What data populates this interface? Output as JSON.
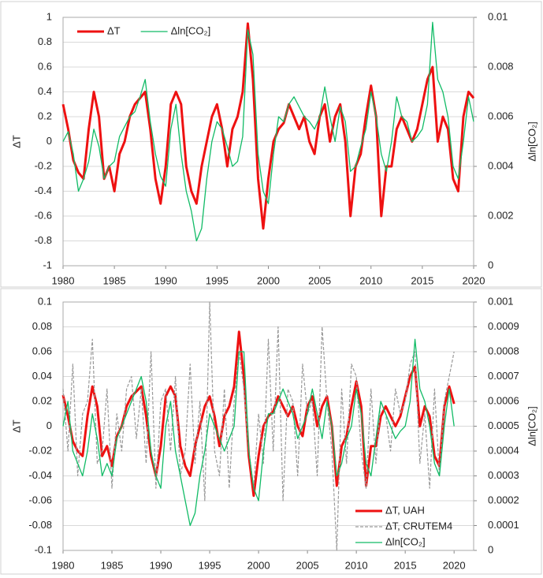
{
  "chart_data": [
    {
      "type": "line",
      "ylabel": "ΔT",
      "y2label": "Δln[CO₂]",
      "legend": "upper left",
      "grid": true,
      "x": [
        1980,
        1980.5,
        1981,
        1981.5,
        1982,
        1982.5,
        1983,
        1983.5,
        1984,
        1984.5,
        1985,
        1985.5,
        1986,
        1986.5,
        1987,
        1987.5,
        1988,
        1988.5,
        1989,
        1989.5,
        1990,
        1990.5,
        1991,
        1991.5,
        1992,
        1992.5,
        1993,
        1993.5,
        1994,
        1994.5,
        1995,
        1995.5,
        1996,
        1996.5,
        1997,
        1997.5,
        1998,
        1998.5,
        1999,
        1999.5,
        2000,
        2000.5,
        2001,
        2001.5,
        2002,
        2002.5,
        2003,
        2003.5,
        2004,
        2004.5,
        2005,
        2005.5,
        2006,
        2006.5,
        2007,
        2007.5,
        2008,
        2008.5,
        2009,
        2009.5,
        2010,
        2010.5,
        2011,
        2011.5,
        2012,
        2012.5,
        2013,
        2013.5,
        2014,
        2014.5,
        2015,
        2015.5,
        2016,
        2016.5,
        2017,
        2017.5,
        2018,
        2018.5,
        2019,
        2019.5,
        2020
      ],
      "xlim": [
        1980,
        2020
      ],
      "xticks": [
        1980,
        1985,
        1990,
        1995,
        2000,
        2005,
        2010,
        2015,
        2020
      ],
      "ylim": [
        -1,
        1
      ],
      "yticks": [
        -1,
        -0.8,
        -0.6,
        -0.4,
        -0.2,
        0,
        0.2,
        0.4,
        0.6,
        0.8,
        1
      ],
      "y2lim": [
        0,
        0.01
      ],
      "y2ticks": [
        0,
        0.002,
        0.004,
        0.006,
        0.008,
        0.01
      ],
      "series": [
        {
          "name": "ΔT",
          "color": "#ee1111",
          "style": "thick",
          "values": [
            0.3,
            0.1,
            -0.15,
            -0.25,
            -0.3,
            0.1,
            0.4,
            0.2,
            -0.3,
            -0.2,
            -0.4,
            -0.1,
            0,
            0.2,
            0.3,
            0.35,
            0.4,
            0.1,
            -0.3,
            -0.5,
            -0.2,
            0.3,
            0.4,
            0.3,
            -0.2,
            -0.4,
            -0.5,
            -0.2,
            0,
            0.2,
            0.3,
            0.1,
            -0.2,
            0.1,
            0.2,
            0.4,
            0.95,
            0.5,
            -0.3,
            -0.7,
            -0.3,
            0,
            0.1,
            0.15,
            0.3,
            0.2,
            0.1,
            0.2,
            0,
            -0.1,
            0.2,
            0.3,
            0,
            0.2,
            0.3,
            0,
            -0.6,
            -0.2,
            -0.1,
            0.2,
            0.45,
            0.2,
            -0.6,
            -0.2,
            -0.2,
            0.1,
            0.2,
            0.1,
            0,
            0.1,
            0.3,
            0.5,
            0.6,
            0,
            0.2,
            0.1,
            -0.3,
            -0.4,
            0.2,
            0.4,
            0.35
          ]
        },
        {
          "name": "Δln[CO₂]",
          "color": "#11bb66",
          "style": "thin",
          "axis": "y2",
          "values": [
            0.005,
            0.0054,
            0.0045,
            0.003,
            0.0035,
            0.0042,
            0.0055,
            0.0048,
            0.0035,
            0.004,
            0.0042,
            0.0052,
            0.0056,
            0.006,
            0.0062,
            0.0068,
            0.0075,
            0.0058,
            0.0045,
            0.0036,
            0.0032,
            0.0055,
            0.0065,
            0.0045,
            0.003,
            0.0022,
            0.001,
            0.0015,
            0.0035,
            0.005,
            0.0058,
            0.0055,
            0.0048,
            0.004,
            0.0042,
            0.0052,
            0.0095,
            0.0085,
            0.0045,
            0.003,
            0.0025,
            0.0045,
            0.006,
            0.0058,
            0.0065,
            0.0068,
            0.0064,
            0.006,
            0.0058,
            0.0055,
            0.006,
            0.0072,
            0.006,
            0.005,
            0.0064,
            0.0058,
            0.0038,
            0.004,
            0.0048,
            0.0055,
            0.007,
            0.006,
            0.0045,
            0.0038,
            0.005,
            0.0068,
            0.006,
            0.0058,
            0.005,
            0.0052,
            0.0055,
            0.0065,
            0.0098,
            0.0075,
            0.007,
            0.006,
            0.004,
            0.0035,
            0.005,
            0.0068,
            0.0058
          ]
        }
      ]
    },
    {
      "type": "line",
      "ylabel": "ΔT",
      "y2label": "Δln[CO₂]",
      "legend": "lower right",
      "grid": true,
      "x": [
        1980,
        1980.5,
        1981,
        1981.5,
        1982,
        1982.5,
        1983,
        1983.5,
        1984,
        1984.5,
        1985,
        1985.5,
        1986,
        1986.5,
        1987,
        1987.5,
        1988,
        1988.5,
        1989,
        1989.5,
        1990,
        1990.5,
        1991,
        1991.5,
        1992,
        1992.5,
        1993,
        1993.5,
        1994,
        1994.5,
        1995,
        1995.5,
        1996,
        1996.5,
        1997,
        1997.5,
        1998,
        1998.5,
        1999,
        1999.5,
        2000,
        2000.5,
        2001,
        2001.5,
        2002,
        2002.5,
        2003,
        2003.5,
        2004,
        2004.5,
        2005,
        2005.5,
        2006,
        2006.5,
        2007,
        2007.5,
        2008,
        2008.5,
        2009,
        2009.5,
        2010,
        2010.5,
        2011,
        2011.5,
        2012,
        2012.5,
        2013,
        2013.5,
        2014,
        2014.5,
        2015,
        2015.5,
        2016,
        2016.5,
        2017,
        2017.5,
        2018,
        2018.5,
        2019,
        2019.5,
        2020
      ],
      "xlim": [
        1980,
        2022
      ],
      "xticks": [
        1980,
        1985,
        1990,
        1995,
        2000,
        2005,
        2010,
        2015,
        2020
      ],
      "ylim": [
        -0.1,
        0.1
      ],
      "yticks": [
        -0.1,
        -0.08,
        -0.06,
        -0.04,
        -0.02,
        0,
        0.02,
        0.04,
        0.06,
        0.08,
        0.1
      ],
      "y2lim": [
        0,
        0.001
      ],
      "y2ticks": [
        0,
        0.0001,
        0.0002,
        0.0003,
        0.0004,
        0.0005,
        0.0006,
        0.0007,
        0.0008,
        0.0009,
        0.001
      ],
      "series": [
        {
          "name": "ΔT, UAH",
          "color": "#ee1111",
          "style": "thick",
          "values": [
            0.025,
            0.008,
            -0.012,
            -0.02,
            -0.024,
            0.008,
            0.032,
            0.016,
            -0.024,
            -0.016,
            -0.032,
            -0.008,
            0,
            0.016,
            0.024,
            0.028,
            0.032,
            0.008,
            -0.024,
            -0.04,
            -0.016,
            0.024,
            0.032,
            0.024,
            -0.016,
            -0.032,
            -0.04,
            -0.016,
            0,
            0.016,
            0.024,
            0.008,
            -0.016,
            0.008,
            0.016,
            0.032,
            0.076,
            0.04,
            -0.024,
            -0.056,
            -0.024,
            0,
            0.008,
            0.012,
            0.024,
            0.016,
            0.008,
            0.016,
            0,
            -0.008,
            0.016,
            0.024,
            0,
            0.016,
            0.024,
            0,
            -0.048,
            -0.016,
            -0.008,
            0.016,
            0.036,
            0.016,
            -0.048,
            -0.016,
            -0.016,
            0.008,
            0.016,
            0.008,
            0,
            0.008,
            0.024,
            0.04,
            0.048,
            0,
            0.016,
            0.008,
            -0.024,
            -0.032,
            0.016,
            0.032,
            0.018
          ]
        },
        {
          "name": "ΔT, CRUTEM4",
          "color": "#999999",
          "style": "dashed",
          "values": [
            0.03,
            -0.02,
            0.05,
            -0.04,
            0.01,
            0.02,
            0.07,
            -0.03,
            -0.02,
            0.03,
            -0.05,
            0.01,
            -0.02,
            0.03,
            0.04,
            -0.01,
            0.03,
            -0.03,
            0.06,
            -0.05,
            0.02,
            0.03,
            -0.02,
            0.04,
            -0.04,
            -0.02,
            0.05,
            -0.03,
            0.02,
            -0.06,
            0.1,
            -0.02,
            -0.04,
            0.03,
            -0.05,
            0.02,
            0.06,
            0.03,
            -0.02,
            -0.05,
            0.01,
            -0.03,
            0.07,
            -0.02,
            0.08,
            -0.06,
            0.03,
            0.02,
            -0.04,
            0.05,
            0.01,
            0.02,
            -0.04,
            0.08,
            0.02,
            -0.02,
            -0.1,
            0.03,
            -0.03,
            0.05,
            0.04,
            -0.02,
            -0.05,
            0.03,
            -0.03,
            0.02,
            0.01,
            -0.02,
            0.03,
            0.01,
            0.02,
            0.05,
            0.06,
            -0.03,
            0.01,
            -0.05,
            0.03,
            -0.04,
            0.02,
            0.04,
            0.06
          ]
        },
        {
          "name": "Δln[CO₂]",
          "color": "#11bb66",
          "style": "thin",
          "axis": "y2",
          "values": [
            0.0005,
            0.0006,
            0.0004,
            0.00035,
            0.0003,
            0.0004,
            0.00055,
            0.00045,
            0.0003,
            0.00035,
            0.0003,
            0.00045,
            0.0005,
            0.00055,
            0.0006,
            0.00065,
            0.0007,
            0.0006,
            0.0004,
            0.0003,
            0.00025,
            0.0005,
            0.0006,
            0.0004,
            0.0003,
            0.0002,
            0.0001,
            0.00015,
            0.0003,
            0.0004,
            0.00055,
            0.0005,
            0.00045,
            0.0004,
            0.00045,
            0.0005,
            0.0008,
            0.0008,
            0.0004,
            0.00025,
            0.0002,
            0.0004,
            0.00055,
            0.00055,
            0.0006,
            0.00065,
            0.0006,
            0.00055,
            0.00045,
            0.0005,
            0.00055,
            0.00065,
            0.00055,
            0.00045,
            0.0006,
            0.0005,
            0.0003,
            0.00035,
            0.00045,
            0.0005,
            0.00065,
            0.00055,
            0.00035,
            0.0003,
            0.00045,
            0.0006,
            0.00055,
            0.0005,
            0.00045,
            0.00048,
            0.0005,
            0.0006,
            0.00085,
            0.00065,
            0.0006,
            0.0005,
            0.00035,
            0.0003,
            0.0005,
            0.00065,
            0.0005
          ]
        }
      ]
    }
  ]
}
